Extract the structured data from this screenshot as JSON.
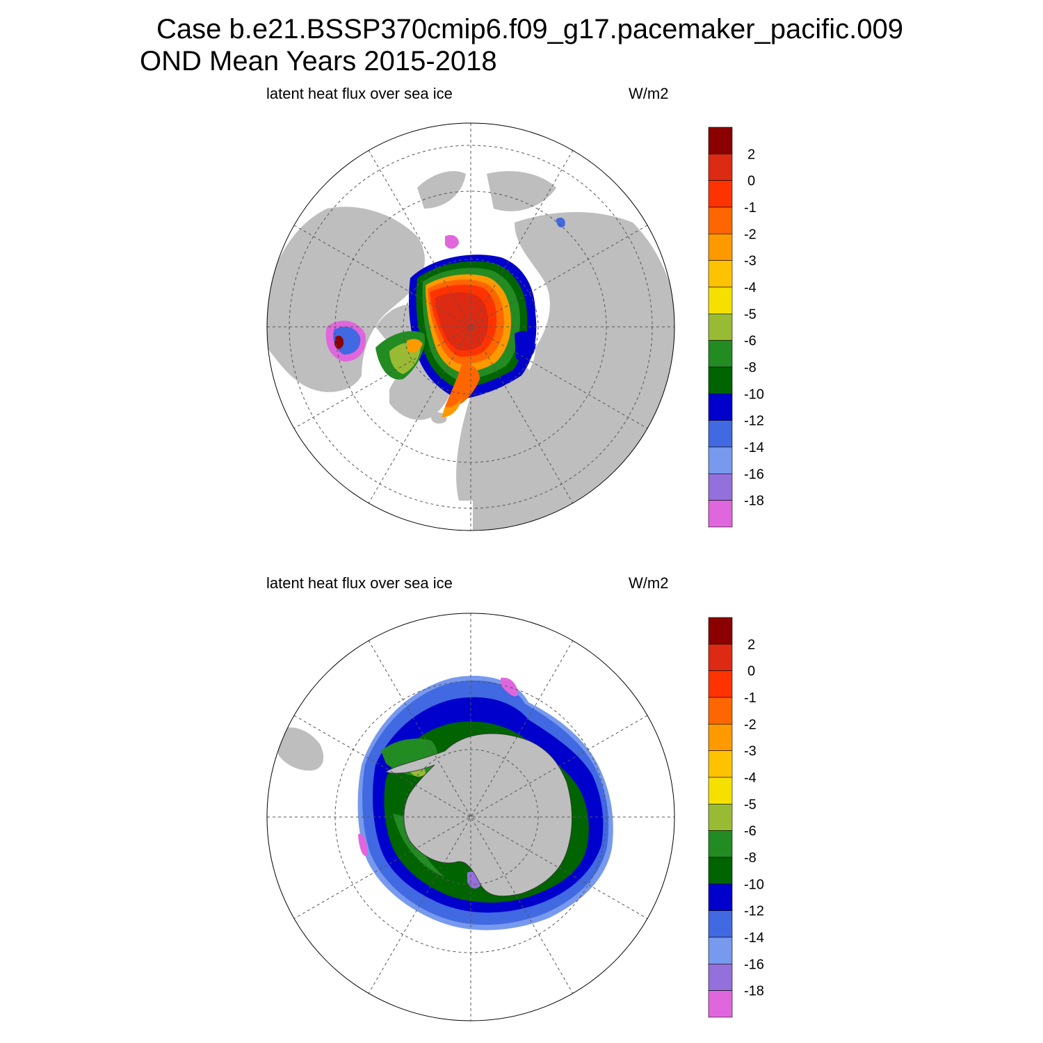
{
  "title_line1": "Case b.e21.BSSP370cmip6.f09_g17.pacemaker_pacific.009",
  "title_line2": "OND Mean   Years 2015-2018",
  "panels": [
    {
      "subtitle": "latent heat flux over sea ice",
      "units": "W/m2",
      "hemisphere": "north"
    },
    {
      "subtitle": "latent heat flux over sea ice",
      "units": "W/m2",
      "hemisphere": "south"
    }
  ],
  "colorbar": {
    "levels": [
      "2",
      "0",
      "-1",
      "-2",
      "-3",
      "-4",
      "-5",
      "-6",
      "-8",
      "-10",
      "-12",
      "-14",
      "-16",
      "-18"
    ],
    "colors": [
      "#8b0000",
      "#dd2a12",
      "#ff3300",
      "#ff6600",
      "#ff9900",
      "#ffc200",
      "#f5e000",
      "#99bb33",
      "#228b22",
      "#006400",
      "#0000cd",
      "#4169e1",
      "#7799ee",
      "#9370db",
      "#e066dd"
    ]
  },
  "colors": {
    "land": "#bebebe",
    "ocean": "#ffffff"
  }
}
